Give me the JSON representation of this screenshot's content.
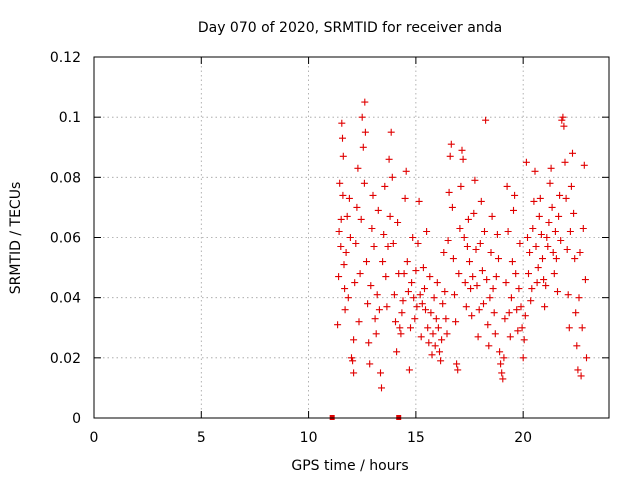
{
  "chart_data": {
    "type": "scatter",
    "title": "Day 070 of 2020, SRMTID for receiver anda",
    "xlabel": "GPS time / hours",
    "ylabel": "SRMTID / TECUs",
    "xlim": [
      0,
      24
    ],
    "ylim": [
      0,
      0.12
    ],
    "xticks": [
      0,
      5,
      10,
      15,
      20
    ],
    "xtick_labels": [
      "0",
      "5",
      "10",
      "15",
      "20"
    ],
    "yticks": [
      0,
      0.02,
      0.04,
      0.06,
      0.08,
      0.1,
      0.12
    ],
    "ytick_labels": [
      "0",
      "0.02",
      "0.04",
      "0.06",
      "0.08",
      "0.1",
      "0.12"
    ],
    "grid": true,
    "marker": "+",
    "color": "#e00000",
    "zero_points": [
      {
        "x": 11.1,
        "y": 0
      },
      {
        "x": 14.2,
        "y": 0
      }
    ],
    "series": [
      {
        "name": "SRMTID",
        "points": [
          [
            11.35,
            0.031
          ],
          [
            11.4,
            0.047
          ],
          [
            11.42,
            0.062
          ],
          [
            11.45,
            0.078
          ],
          [
            11.5,
            0.057
          ],
          [
            11.52,
            0.066
          ],
          [
            11.55,
            0.098
          ],
          [
            11.58,
            0.093
          ],
          [
            11.6,
            0.074
          ],
          [
            11.62,
            0.087
          ],
          [
            11.65,
            0.051
          ],
          [
            11.68,
            0.043
          ],
          [
            11.7,
            0.036
          ],
          [
            11.75,
            0.055
          ],
          [
            11.8,
            0.067
          ],
          [
            11.85,
            0.04
          ],
          [
            11.9,
            0.073
          ],
          [
            11.95,
            0.06
          ],
          [
            12.0,
            0.02
          ],
          [
            12.05,
            0.019
          ],
          [
            12.1,
            0.015
          ],
          [
            12.1,
            0.026
          ],
          [
            12.15,
            0.045
          ],
          [
            12.2,
            0.058
          ],
          [
            12.25,
            0.07
          ],
          [
            12.3,
            0.083
          ],
          [
            12.35,
            0.032
          ],
          [
            12.4,
            0.048
          ],
          [
            12.45,
            0.066
          ],
          [
            12.5,
            0.1
          ],
          [
            12.55,
            0.09
          ],
          [
            12.6,
            0.078
          ],
          [
            12.62,
            0.105
          ],
          [
            12.65,
            0.095
          ],
          [
            12.7,
            0.052
          ],
          [
            12.75,
            0.038
          ],
          [
            12.8,
            0.025
          ],
          [
            12.85,
            0.018
          ],
          [
            12.9,
            0.044
          ],
          [
            12.95,
            0.063
          ],
          [
            13.0,
            0.074
          ],
          [
            13.05,
            0.057
          ],
          [
            13.1,
            0.033
          ],
          [
            13.15,
            0.028
          ],
          [
            13.2,
            0.041
          ],
          [
            13.25,
            0.069
          ],
          [
            13.3,
            0.036
          ],
          [
            13.35,
            0.015
          ],
          [
            13.4,
            0.01
          ],
          [
            13.45,
            0.052
          ],
          [
            13.5,
            0.061
          ],
          [
            13.55,
            0.077
          ],
          [
            13.6,
            0.047
          ],
          [
            13.65,
            0.037
          ],
          [
            13.7,
            0.057
          ],
          [
            13.75,
            0.086
          ],
          [
            13.8,
            0.067
          ],
          [
            13.85,
            0.095
          ],
          [
            13.9,
            0.08
          ],
          [
            13.95,
            0.058
          ],
          [
            14.0,
            0.041
          ],
          [
            14.05,
            0.032
          ],
          [
            14.1,
            0.022
          ],
          [
            14.15,
            0.065
          ],
          [
            14.2,
            0.048
          ],
          [
            14.25,
            0.03
          ],
          [
            14.3,
            0.028
          ],
          [
            14.35,
            0.035
          ],
          [
            14.4,
            0.039
          ],
          [
            14.45,
            0.048
          ],
          [
            14.5,
            0.073
          ],
          [
            14.55,
            0.082
          ],
          [
            14.6,
            0.052
          ],
          [
            14.65,
            0.042
          ],
          [
            14.7,
            0.016
          ],
          [
            14.75,
            0.03
          ],
          [
            14.8,
            0.045
          ],
          [
            14.85,
            0.06
          ],
          [
            14.9,
            0.04
          ],
          [
            14.95,
            0.033
          ],
          [
            15.0,
            0.049
          ],
          [
            15.05,
            0.037
          ],
          [
            15.1,
            0.058
          ],
          [
            15.15,
            0.072
          ],
          [
            15.2,
            0.041
          ],
          [
            15.25,
            0.027
          ],
          [
            15.3,
            0.038
          ],
          [
            15.35,
            0.05
          ],
          [
            15.4,
            0.043
          ],
          [
            15.45,
            0.036
          ],
          [
            15.5,
            0.062
          ],
          [
            15.55,
            0.03
          ],
          [
            15.6,
            0.025
          ],
          [
            15.65,
            0.047
          ],
          [
            15.7,
            0.035
          ],
          [
            15.75,
            0.021
          ],
          [
            15.8,
            0.028
          ],
          [
            15.85,
            0.04
          ],
          [
            15.9,
            0.024
          ],
          [
            15.95,
            0.033
          ],
          [
            16.0,
            0.045
          ],
          [
            16.05,
            0.03
          ],
          [
            16.1,
            0.022
          ],
          [
            16.15,
            0.019
          ],
          [
            16.2,
            0.026
          ],
          [
            16.25,
            0.038
          ],
          [
            16.3,
            0.055
          ],
          [
            16.35,
            0.042
          ],
          [
            16.4,
            0.033
          ],
          [
            16.45,
            0.028
          ],
          [
            16.5,
            0.059
          ],
          [
            16.55,
            0.075
          ],
          [
            16.6,
            0.087
          ],
          [
            16.65,
            0.091
          ],
          [
            16.7,
            0.07
          ],
          [
            16.75,
            0.053
          ],
          [
            16.8,
            0.041
          ],
          [
            16.85,
            0.032
          ],
          [
            16.9,
            0.018
          ],
          [
            16.95,
            0.016
          ],
          [
            17.0,
            0.048
          ],
          [
            17.05,
            0.063
          ],
          [
            17.1,
            0.077
          ],
          [
            17.15,
            0.089
          ],
          [
            17.2,
            0.086
          ],
          [
            17.25,
            0.06
          ],
          [
            17.3,
            0.045
          ],
          [
            17.35,
            0.037
          ],
          [
            17.4,
            0.057
          ],
          [
            17.45,
            0.066
          ],
          [
            17.5,
            0.052
          ],
          [
            17.55,
            0.043
          ],
          [
            17.6,
            0.034
          ],
          [
            17.65,
            0.047
          ],
          [
            17.7,
            0.068
          ],
          [
            17.75,
            0.079
          ],
          [
            17.8,
            0.056
          ],
          [
            17.85,
            0.044
          ],
          [
            17.9,
            0.027
          ],
          [
            17.95,
            0.036
          ],
          [
            18.0,
            0.058
          ],
          [
            18.05,
            0.072
          ],
          [
            18.1,
            0.049
          ],
          [
            18.15,
            0.038
          ],
          [
            18.2,
            0.062
          ],
          [
            18.25,
            0.099
          ],
          [
            18.3,
            0.046
          ],
          [
            18.35,
            0.031
          ],
          [
            18.4,
            0.024
          ],
          [
            18.45,
            0.04
          ],
          [
            18.5,
            0.055
          ],
          [
            18.55,
            0.067
          ],
          [
            18.6,
            0.043
          ],
          [
            18.65,
            0.035
          ],
          [
            18.7,
            0.028
          ],
          [
            18.75,
            0.047
          ],
          [
            18.8,
            0.061
          ],
          [
            18.85,
            0.053
          ],
          [
            18.9,
            0.022
          ],
          [
            18.95,
            0.018
          ],
          [
            19.0,
            0.015
          ],
          [
            19.05,
            0.013
          ],
          [
            19.1,
            0.02
          ],
          [
            19.15,
            0.033
          ],
          [
            19.2,
            0.045
          ],
          [
            19.25,
            0.077
          ],
          [
            19.3,
            0.062
          ],
          [
            19.35,
            0.035
          ],
          [
            19.4,
            0.027
          ],
          [
            19.45,
            0.04
          ],
          [
            19.5,
            0.052
          ],
          [
            19.55,
            0.069
          ],
          [
            19.6,
            0.074
          ],
          [
            19.65,
            0.048
          ],
          [
            19.7,
            0.036
          ],
          [
            19.75,
            0.029
          ],
          [
            19.8,
            0.043
          ],
          [
            19.85,
            0.058
          ],
          [
            19.9,
            0.037
          ],
          [
            19.95,
            0.03
          ],
          [
            20.0,
            0.02
          ],
          [
            20.05,
            0.026
          ],
          [
            20.1,
            0.034
          ],
          [
            20.15,
            0.085
          ],
          [
            20.2,
            0.06
          ],
          [
            20.25,
            0.048
          ],
          [
            20.3,
            0.055
          ],
          [
            20.35,
            0.039
          ],
          [
            20.4,
            0.043
          ],
          [
            20.45,
            0.063
          ],
          [
            20.5,
            0.072
          ],
          [
            20.55,
            0.082
          ],
          [
            20.6,
            0.057
          ],
          [
            20.65,
            0.045
          ],
          [
            20.7,
            0.05
          ],
          [
            20.75,
            0.067
          ],
          [
            20.8,
            0.073
          ],
          [
            20.85,
            0.061
          ],
          [
            20.9,
            0.053
          ],
          [
            20.95,
            0.046
          ],
          [
            21.0,
            0.037
          ],
          [
            21.05,
            0.044
          ],
          [
            21.1,
            0.06
          ],
          [
            21.15,
            0.057
          ],
          [
            21.2,
            0.065
          ],
          [
            21.25,
            0.078
          ],
          [
            21.3,
            0.083
          ],
          [
            21.35,
            0.07
          ],
          [
            21.4,
            0.055
          ],
          [
            21.45,
            0.048
          ],
          [
            21.5,
            0.062
          ],
          [
            21.55,
            0.053
          ],
          [
            21.6,
            0.042
          ],
          [
            21.65,
            0.067
          ],
          [
            21.7,
            0.074
          ],
          [
            21.75,
            0.059
          ],
          [
            21.8,
            0.099
          ],
          [
            21.85,
            0.1
          ],
          [
            21.9,
            0.097
          ],
          [
            21.95,
            0.085
          ],
          [
            22.0,
            0.073
          ],
          [
            22.05,
            0.056
          ],
          [
            22.1,
            0.041
          ],
          [
            22.15,
            0.03
          ],
          [
            22.2,
            0.062
          ],
          [
            22.25,
            0.077
          ],
          [
            22.3,
            0.088
          ],
          [
            22.35,
            0.068
          ],
          [
            22.4,
            0.053
          ],
          [
            22.45,
            0.035
          ],
          [
            22.5,
            0.024
          ],
          [
            22.55,
            0.016
          ],
          [
            22.6,
            0.04
          ],
          [
            22.65,
            0.055
          ],
          [
            22.7,
            0.014
          ],
          [
            22.75,
            0.03
          ],
          [
            22.8,
            0.063
          ],
          [
            22.85,
            0.084
          ],
          [
            22.9,
            0.046
          ],
          [
            22.95,
            0.02
          ]
        ]
      }
    ]
  }
}
